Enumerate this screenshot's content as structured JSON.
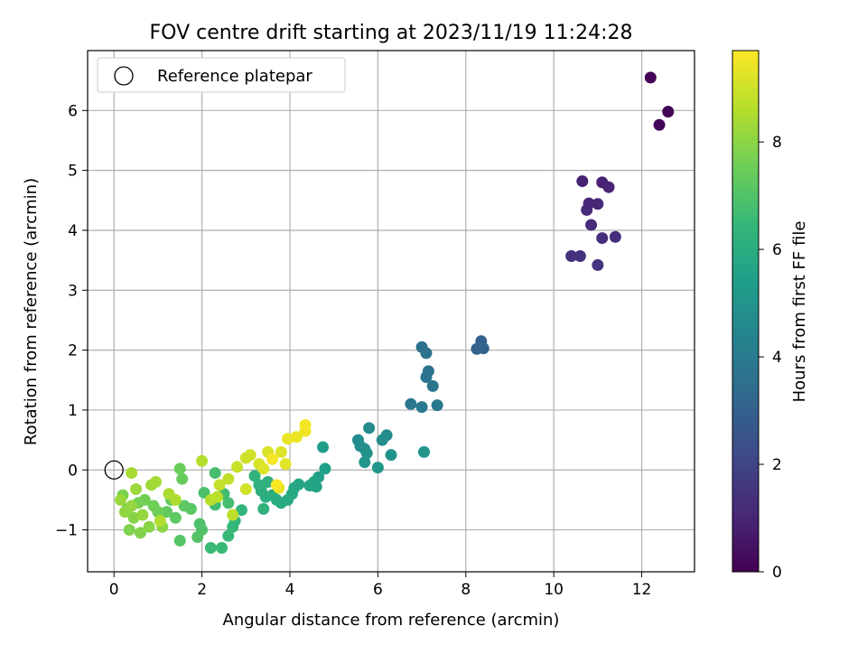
{
  "chart_data": {
    "type": "scatter",
    "title": "FOV centre drift starting at 2023/11/19 11:24:28",
    "xlabel": "Angular distance from reference (arcmin)",
    "ylabel": "Rotation from reference (arcmin)",
    "xlim": [
      -0.6,
      13.2
    ],
    "ylim": [
      -1.7,
      7.0
    ],
    "xticks": [
      0,
      2,
      4,
      6,
      8,
      10,
      12
    ],
    "yticks": [
      -1,
      0,
      1,
      2,
      3,
      4,
      5,
      6
    ],
    "grid": true,
    "legend": {
      "placement": "top-left",
      "entries": [
        "Reference platepar"
      ]
    },
    "reference_point": {
      "x": 0,
      "y": 0,
      "label": "Reference platepar"
    },
    "colorbar": {
      "label": "Hours from first FF file",
      "colormap": "viridis",
      "range": [
        0,
        9.7
      ],
      "ticks": [
        0,
        2,
        4,
        6,
        8
      ]
    },
    "colors": {
      "viridis": [
        "#440154",
        "#482878",
        "#3e4989",
        "#31688e",
        "#26828e",
        "#1f9e89",
        "#35b779",
        "#6ece58",
        "#b5de2b",
        "#fde725"
      ]
    },
    "points": [
      [
        12.2,
        6.55,
        0.05
      ],
      [
        12.6,
        5.98,
        0.1
      ],
      [
        12.4,
        5.76,
        0.15
      ],
      [
        10.65,
        4.82,
        0.9
      ],
      [
        11.1,
        4.8,
        0.95
      ],
      [
        11.25,
        4.72,
        1.0
      ],
      [
        10.8,
        4.45,
        1.05
      ],
      [
        11.0,
        4.44,
        1.1
      ],
      [
        10.75,
        4.34,
        1.15
      ],
      [
        10.85,
        4.09,
        1.2
      ],
      [
        11.4,
        3.89,
        1.25
      ],
      [
        11.1,
        3.87,
        1.3
      ],
      [
        10.4,
        3.57,
        1.35
      ],
      [
        10.6,
        3.57,
        1.4
      ],
      [
        11.0,
        3.42,
        1.45
      ],
      [
        8.35,
        2.15,
        3.0
      ],
      [
        8.25,
        2.02,
        3.05
      ],
      [
        8.4,
        2.03,
        3.1
      ],
      [
        7.0,
        2.05,
        3.6
      ],
      [
        7.1,
        1.95,
        3.65
      ],
      [
        7.15,
        1.65,
        3.7
      ],
      [
        7.1,
        1.55,
        3.75
      ],
      [
        7.25,
        1.4,
        3.8
      ],
      [
        6.75,
        1.1,
        3.85
      ],
      [
        7.35,
        1.08,
        3.9
      ],
      [
        7.0,
        1.05,
        3.95
      ],
      [
        5.8,
        0.7,
        4.6
      ],
      [
        6.2,
        0.58,
        4.65
      ],
      [
        5.55,
        0.5,
        4.7
      ],
      [
        6.1,
        0.5,
        4.75
      ],
      [
        5.6,
        0.4,
        4.8
      ],
      [
        5.7,
        0.35,
        4.85
      ],
      [
        5.75,
        0.28,
        4.9
      ],
      [
        6.3,
        0.25,
        4.95
      ],
      [
        7.05,
        0.3,
        5.0
      ],
      [
        5.7,
        0.13,
        5.05
      ],
      [
        6.0,
        0.04,
        5.1
      ],
      [
        4.75,
        0.38,
        5.4
      ],
      [
        4.8,
        0.02,
        5.45
      ],
      [
        4.65,
        -0.12,
        5.5
      ],
      [
        4.55,
        -0.2,
        5.55
      ],
      [
        4.6,
        -0.28,
        5.6
      ],
      [
        4.45,
        -0.26,
        5.65
      ],
      [
        4.2,
        -0.24,
        5.7
      ],
      [
        4.1,
        -0.3,
        5.75
      ],
      [
        4.05,
        -0.4,
        5.8
      ],
      [
        3.95,
        -0.5,
        5.85
      ],
      [
        3.8,
        -0.55,
        5.9
      ],
      [
        3.7,
        -0.5,
        5.95
      ],
      [
        3.6,
        -0.42,
        6.0
      ],
      [
        3.45,
        -0.45,
        6.05
      ],
      [
        3.35,
        -0.35,
        6.1
      ],
      [
        3.3,
        -0.25,
        6.15
      ],
      [
        3.5,
        -0.2,
        6.2
      ],
      [
        3.4,
        -0.65,
        6.25
      ],
      [
        3.2,
        -0.1,
        6.3
      ],
      [
        2.9,
        -0.67,
        6.35
      ],
      [
        2.75,
        -0.85,
        6.4
      ],
      [
        2.7,
        -0.95,
        6.45
      ],
      [
        2.6,
        -1.1,
        6.5
      ],
      [
        2.45,
        -1.3,
        6.55
      ],
      [
        2.2,
        -1.3,
        6.6
      ],
      [
        2.3,
        -0.58,
        6.65
      ],
      [
        2.5,
        -0.4,
        6.7
      ],
      [
        2.6,
        -0.55,
        6.75
      ],
      [
        2.3,
        -0.05,
        6.8
      ],
      [
        2.05,
        -0.38,
        6.9
      ],
      [
        1.95,
        -0.9,
        6.95
      ],
      [
        2.0,
        -1.0,
        7.0
      ],
      [
        1.9,
        -1.12,
        7.05
      ],
      [
        1.5,
        -1.18,
        7.1
      ],
      [
        1.75,
        -0.65,
        7.15
      ],
      [
        1.6,
        -0.6,
        7.2
      ],
      [
        1.4,
        -0.8,
        7.25
      ],
      [
        1.2,
        -0.7,
        7.3
      ],
      [
        1.3,
        -0.5,
        7.35
      ],
      [
        1.55,
        -0.15,
        7.4
      ],
      [
        1.5,
        0.02,
        7.45
      ],
      [
        1.0,
        -0.7,
        7.5
      ],
      [
        0.9,
        -0.6,
        7.55
      ],
      [
        0.7,
        -0.5,
        7.6
      ],
      [
        0.55,
        -0.55,
        7.65
      ],
      [
        0.3,
        -0.65,
        7.7
      ],
      [
        0.2,
        -0.42,
        7.75
      ],
      [
        0.35,
        -1.0,
        7.8
      ],
      [
        0.6,
        -1.05,
        7.85
      ],
      [
        0.45,
        -0.8,
        7.9
      ],
      [
        0.8,
        -0.95,
        7.95
      ],
      [
        1.1,
        -0.95,
        8.0
      ],
      [
        0.25,
        -0.7,
        8.05
      ],
      [
        0.4,
        -0.6,
        8.1
      ],
      [
        0.65,
        -0.75,
        8.15
      ],
      [
        0.15,
        -0.5,
        8.2
      ],
      [
        0.5,
        -0.32,
        8.25
      ],
      [
        0.85,
        -0.25,
        8.3
      ],
      [
        0.95,
        -0.2,
        8.35
      ],
      [
        0.4,
        -0.05,
        8.4
      ],
      [
        1.25,
        -0.4,
        8.45
      ],
      [
        1.4,
        -0.5,
        8.5
      ],
      [
        1.05,
        -0.85,
        8.55
      ],
      [
        2.0,
        0.15,
        8.6
      ],
      [
        2.2,
        -0.5,
        8.65
      ],
      [
        2.35,
        -0.45,
        8.7
      ],
      [
        2.7,
        -0.75,
        8.75
      ],
      [
        2.6,
        -0.15,
        8.8
      ],
      [
        2.4,
        -0.25,
        8.85
      ],
      [
        2.8,
        0.05,
        8.9
      ],
      [
        3.0,
        0.2,
        8.95
      ],
      [
        3.1,
        0.25,
        9.0
      ],
      [
        3.0,
        -0.32,
        9.05
      ],
      [
        3.3,
        0.1,
        9.1
      ],
      [
        3.5,
        0.3,
        9.15
      ],
      [
        3.4,
        0.02,
        9.2
      ],
      [
        3.8,
        0.3,
        9.25
      ],
      [
        3.9,
        0.1,
        9.3
      ],
      [
        3.75,
        -0.3,
        9.35
      ],
      [
        3.95,
        0.52,
        9.4
      ],
      [
        4.15,
        0.55,
        9.45
      ],
      [
        4.35,
        0.65,
        9.5
      ],
      [
        4.35,
        0.75,
        9.55
      ],
      [
        3.6,
        0.18,
        9.6
      ],
      [
        3.7,
        -0.25,
        9.65
      ]
    ]
  }
}
